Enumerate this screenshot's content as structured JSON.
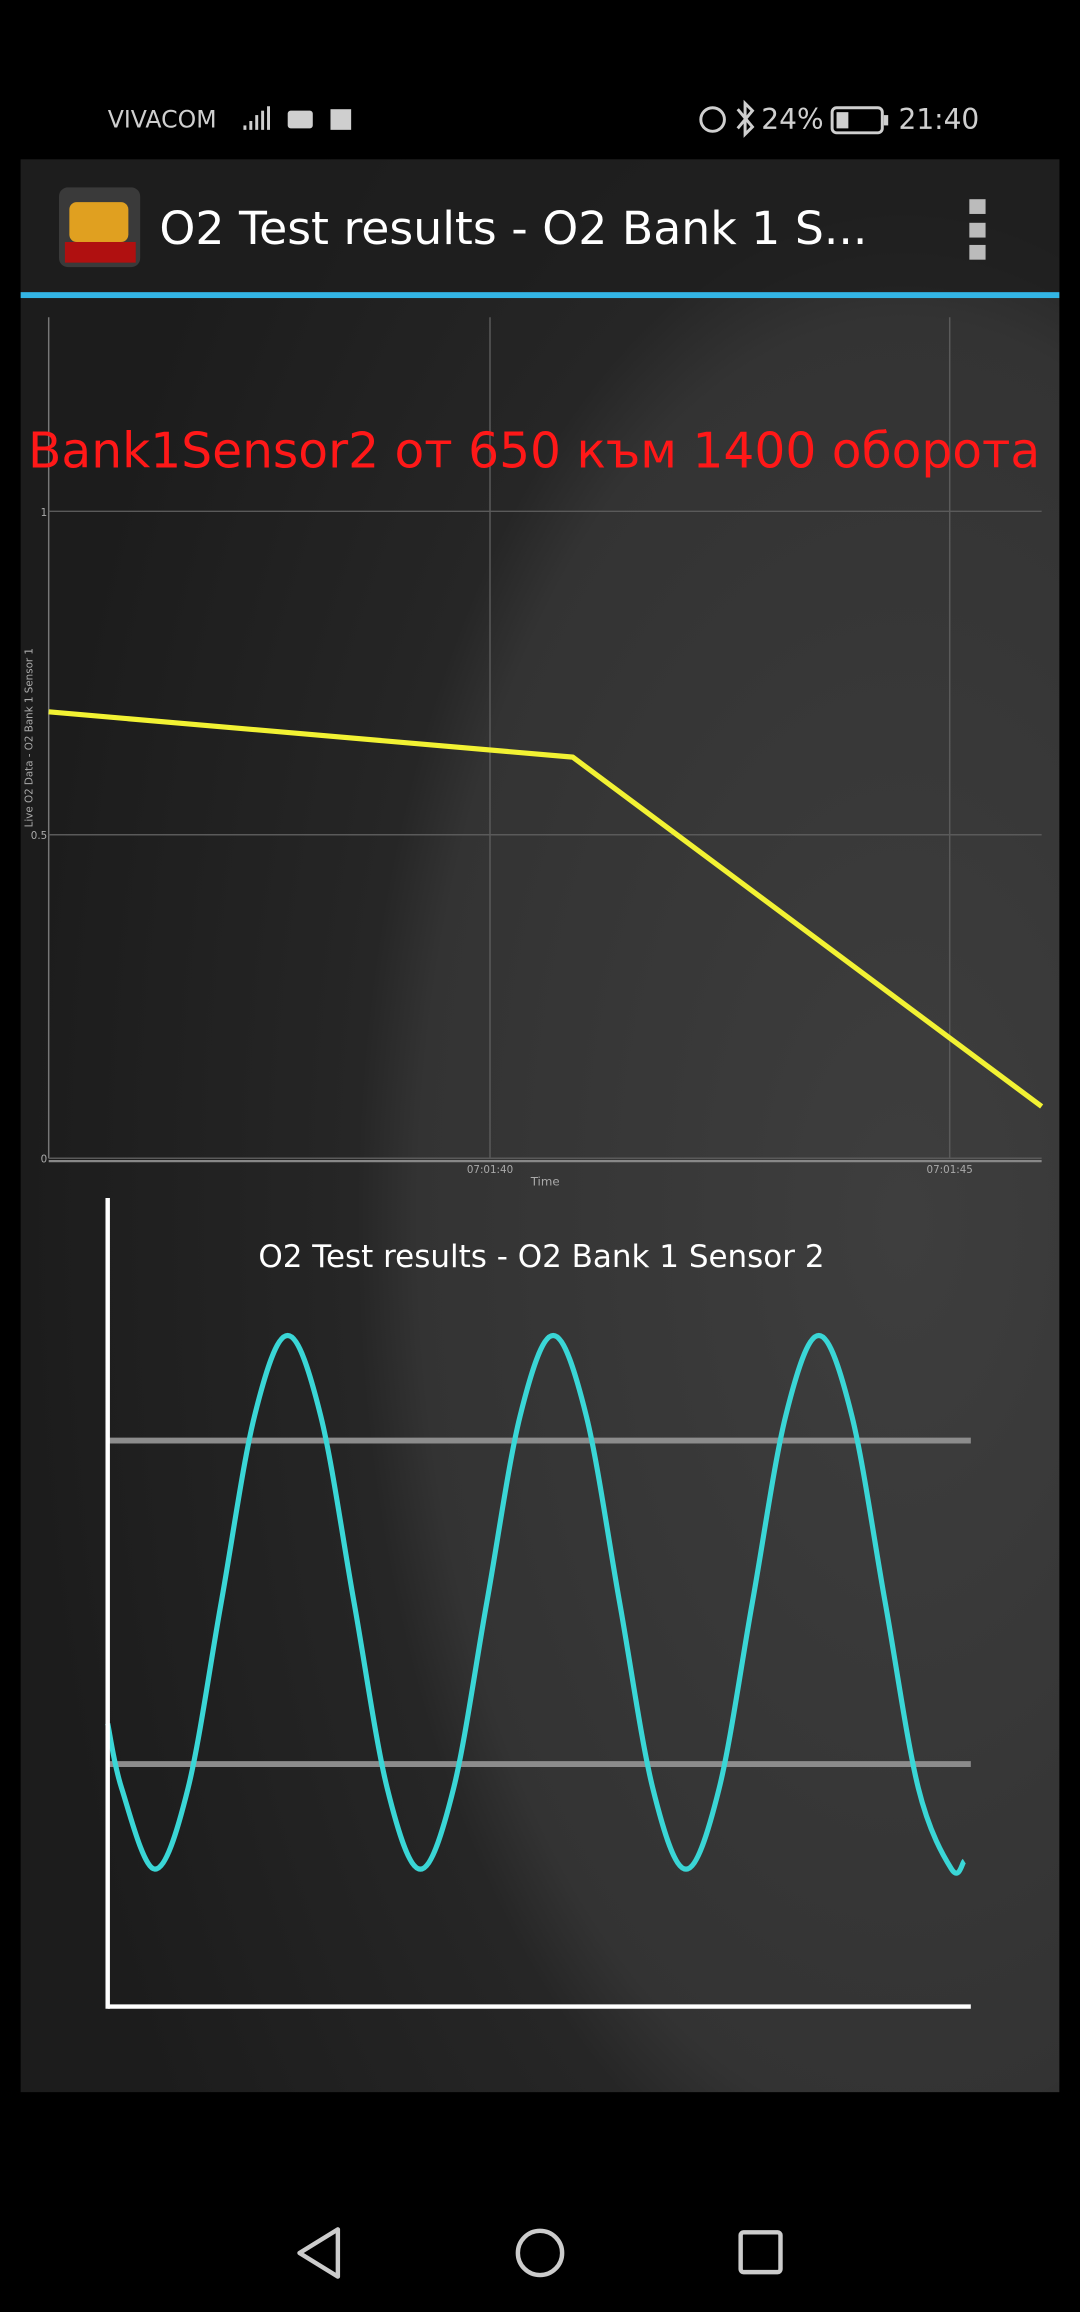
{
  "status_bar": {
    "carrier": "VIVACOM",
    "battery": "24%",
    "time": "21:40"
  },
  "app_bar": {
    "title": "O2 Test results - O2 Bank 1 S..."
  },
  "overlay_text": "Bank1Sensor2 от 650 към 1400 оборота",
  "chart_data": [
    {
      "type": "line",
      "y_label": "Live O2 Data - O2 Bank 1 Sensor 1",
      "x_label": "Time",
      "x": [
        35.2,
        40.9,
        46.0
      ],
      "values": [
        0.69,
        0.62,
        0.08
      ],
      "color": "#f2f233",
      "xlim": [
        35.2,
        46.0
      ],
      "xticks": [
        {
          "value": 40,
          "label": "07:01:40"
        },
        {
          "value": 45,
          "label": "07:01:45"
        }
      ],
      "ylim": [
        0,
        1.3
      ],
      "yticks": [
        0,
        0.5,
        1
      ],
      "grid": true
    },
    {
      "type": "line",
      "title": "O2 Test results - O2 Bank 1 Sensor 2",
      "x": [
        0,
        0.21,
        0.71,
        1.21,
        1.71,
        2.21,
        2.71,
        3.21,
        3.71,
        4.21,
        4.71,
        5.21,
        5.71,
        6.21,
        6.71,
        7.21,
        7.71,
        8.21,
        8.71,
        9.21,
        9.71,
        10.21,
        10.71,
        11.21,
        11.71,
        12.21,
        12.71,
        12.9
      ],
      "values": [
        0.35,
        0.27,
        0.17,
        0.27,
        0.5,
        0.73,
        0.83,
        0.73,
        0.5,
        0.27,
        0.17,
        0.27,
        0.5,
        0.73,
        0.83,
        0.73,
        0.5,
        0.27,
        0.17,
        0.27,
        0.5,
        0.73,
        0.83,
        0.73,
        0.5,
        0.27,
        0.17,
        0.18
      ],
      "color": "#3ad6d6",
      "xlim": [
        0,
        13
      ],
      "ylim": [
        0,
        1
      ],
      "reference_lines": {
        "values": [
          0.7,
          0.3
        ],
        "color": "#8c8c8c"
      }
    }
  ]
}
